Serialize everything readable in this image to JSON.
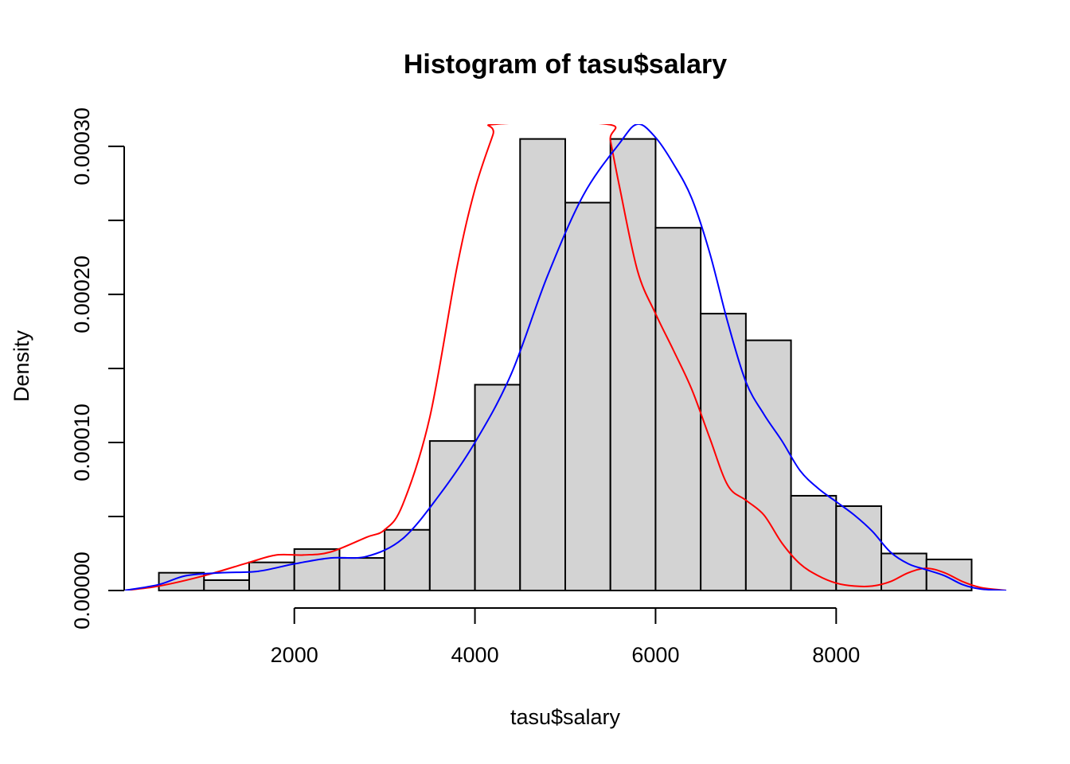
{
  "chart_data": {
    "type": "histogram",
    "title": "Histogram of tasu$salary",
    "xlabel": "tasu$salary",
    "ylabel": "Density",
    "xlim": [
      116,
      9884
    ],
    "ylim": [
      0,
      0.000315
    ],
    "xticks": [
      2000,
      4000,
      6000,
      8000
    ],
    "xtick_labels": [
      "2000",
      "4000",
      "6000",
      "8000"
    ],
    "yticks": [
      0,
      5e-05,
      0.0001,
      0.00015,
      0.0002,
      0.00025,
      0.0003
    ],
    "ytick_labels": [
      "0.00000",
      "",
      "0.00010",
      "",
      "0.00020",
      "",
      "0.00030"
    ],
    "grid": false,
    "bar_fill": "#d3d3d3",
    "bar_stroke": "#000000",
    "bins": [
      {
        "x0": 500,
        "x1": 1000,
        "density": 1.2e-05
      },
      {
        "x0": 1000,
        "x1": 1500,
        "density": 7e-06
      },
      {
        "x0": 1500,
        "x1": 2000,
        "density": 1.9e-05
      },
      {
        "x0": 2000,
        "x1": 2500,
        "density": 2.8e-05
      },
      {
        "x0": 2500,
        "x1": 3000,
        "density": 2.2e-05
      },
      {
        "x0": 3000,
        "x1": 3500,
        "density": 4.1e-05
      },
      {
        "x0": 3500,
        "x1": 4000,
        "density": 0.000101
      },
      {
        "x0": 4000,
        "x1": 4500,
        "density": 0.000139
      },
      {
        "x0": 4500,
        "x1": 5000,
        "density": 0.000305
      },
      {
        "x0": 5000,
        "x1": 5500,
        "density": 0.000262
      },
      {
        "x0": 5500,
        "x1": 6000,
        "density": 0.000305
      },
      {
        "x0": 6000,
        "x1": 6500,
        "density": 0.000245
      },
      {
        "x0": 6500,
        "x1": 7000,
        "density": 0.000187
      },
      {
        "x0": 7000,
        "x1": 7500,
        "density": 0.000169
      },
      {
        "x0": 7500,
        "x1": 8000,
        "density": 6.4e-05
      },
      {
        "x0": 8000,
        "x1": 8500,
        "density": 5.7e-05
      },
      {
        "x0": 8500,
        "x1": 9000,
        "density": 2.5e-05
      },
      {
        "x0": 9000,
        "x1": 9500,
        "density": 2.1e-05
      }
    ],
    "series": [
      {
        "type": "line",
        "color": "#ff0000",
        "x": [
          116,
          500,
          1000,
          1500,
          1800,
          2100,
          2400,
          2800,
          3000,
          3200,
          3500,
          3800,
          4000,
          4200,
          4240,
          5460,
          5500,
          5600,
          5800,
          6000,
          6200,
          6400,
          6600,
          6800,
          7000,
          7200,
          7400,
          7600,
          7800,
          8000,
          8200,
          8400,
          8600,
          8800,
          9000,
          9200,
          9400,
          9600,
          9884
        ],
        "y": [
          0.0,
          3e-06,
          1e-05,
          1.9e-05,
          2.4e-05,
          2.4e-05,
          2.6e-05,
          3.6e-05,
          4.1e-05,
          5.8e-05,
          0.000117,
          0.000218,
          0.000271,
          0.000308,
          0.000315,
          0.000315,
          0.000304,
          0.000273,
          0.000216,
          0.000187,
          0.000162,
          0.000136,
          0.000103,
          7.1e-05,
          6.1e-05,
          5.1e-05,
          3.2e-05,
          1.8e-05,
          1e-05,
          5e-06,
          3e-06,
          3e-06,
          6e-06,
          1.2e-05,
          1.5e-05,
          1.2e-05,
          6e-06,
          2e-06,
          0.0
        ]
      },
      {
        "type": "line",
        "color": "#0000ff",
        "x": [
          116,
          500,
          800,
          1200,
          1600,
          2000,
          2400,
          2800,
          3200,
          3600,
          4000,
          4400,
          4800,
          5200,
          5600,
          5800,
          6000,
          6200,
          6400,
          6600,
          6800,
          7000,
          7200,
          7400,
          7600,
          7800,
          8000,
          8200,
          8400,
          8600,
          8800,
          9000,
          9200,
          9400,
          9600,
          9884
        ],
        "y": [
          0.0,
          4e-06,
          1e-05,
          1.2e-05,
          1.3e-05,
          1.8e-05,
          2.2e-05,
          2.3e-05,
          3.5e-05,
          6.4e-05,
          0.0001,
          0.000146,
          0.000212,
          0.000267,
          0.000302,
          0.000315,
          0.000306,
          0.000288,
          0.000265,
          0.000228,
          0.000181,
          0.000141,
          0.000119,
          0.000101,
          8.1e-05,
          6.9e-05,
          6e-05,
          5.1e-05,
          4e-05,
          2.6e-05,
          1.8e-05,
          1.4e-05,
          1e-05,
          4e-06,
          1e-06,
          0.0
        ]
      }
    ]
  }
}
